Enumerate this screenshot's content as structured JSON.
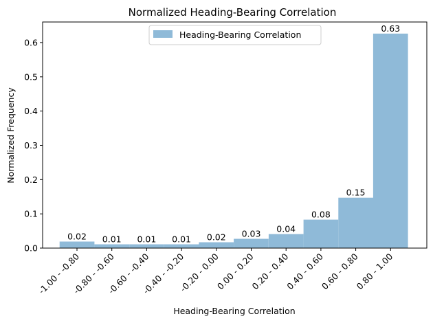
{
  "chart_data": {
    "type": "bar",
    "title": "Normalized Heading-Bearing Correlation",
    "xlabel": "Heading-Bearing Correlation",
    "ylabel": "Normalized Frequency",
    "categories": [
      "-1.00 - -0.80",
      "-0.80 - -0.60",
      "-0.60 - -0.40",
      "-0.40 - -0.20",
      "-0.20 - 0.00",
      "0.00 - 0.20",
      "0.20 - 0.40",
      "0.40 - 0.60",
      "0.60 - 0.80",
      "0.80 - 1.00"
    ],
    "series": [
      {
        "name": "Heading-Bearing Correlation",
        "values": [
          0.019,
          0.011,
          0.011,
          0.011,
          0.017,
          0.027,
          0.041,
          0.083,
          0.147,
          0.626
        ],
        "labels": [
          "0.02",
          "0.01",
          "0.01",
          "0.01",
          "0.02",
          "0.03",
          "0.04",
          "0.08",
          "0.15",
          "0.63"
        ],
        "color": "#8fbad8"
      }
    ],
    "ylim": [
      0,
      0.66
    ],
    "yticks": [
      "0.0",
      "0.1",
      "0.2",
      "0.3",
      "0.4",
      "0.5",
      "0.6"
    ],
    "grid": false,
    "legend": "top-center"
  }
}
